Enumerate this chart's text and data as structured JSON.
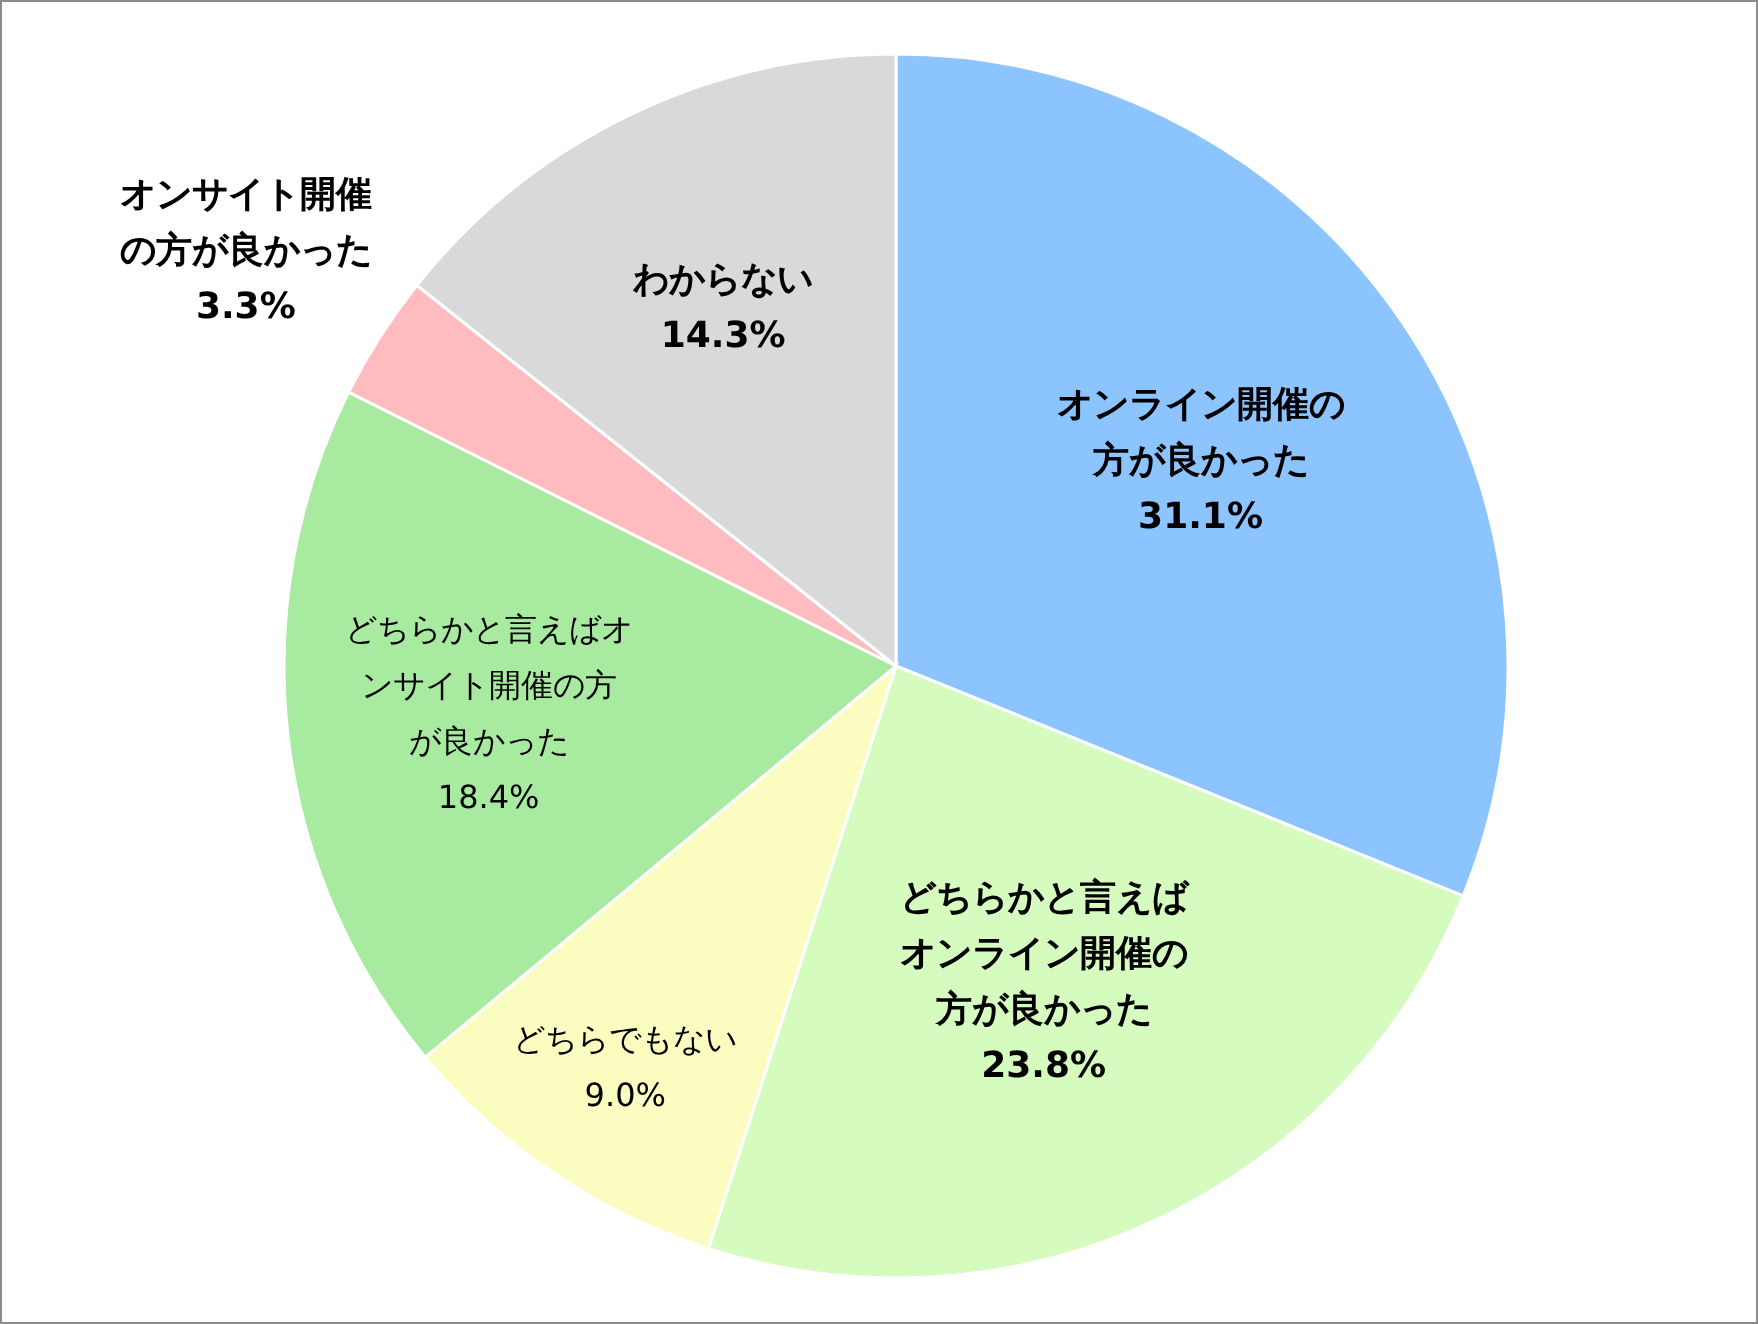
{
  "chart_data": {
    "type": "pie",
    "categories": [
      "オンライン開催の方が良かった",
      "どちらかと言えばオンライン開催の方が良かった",
      "どちらでもない",
      "どちらかと言えばオンサイト開催の方が良かった",
      "オンサイト開催の方が良かった",
      "わからない"
    ],
    "values": [
      31.1,
      23.8,
      9.0,
      18.4,
      3.3,
      14.3
    ],
    "value_labels": [
      "31.1%",
      "23.8%",
      "9.0%",
      "18.4%",
      "3.3%",
      "14.3%"
    ],
    "colors": [
      "#8cc4ff",
      "#d5fbbf",
      "#fafcc0",
      "#a8eba0",
      "#ffbcc0",
      "#d9d9d9"
    ]
  }
}
